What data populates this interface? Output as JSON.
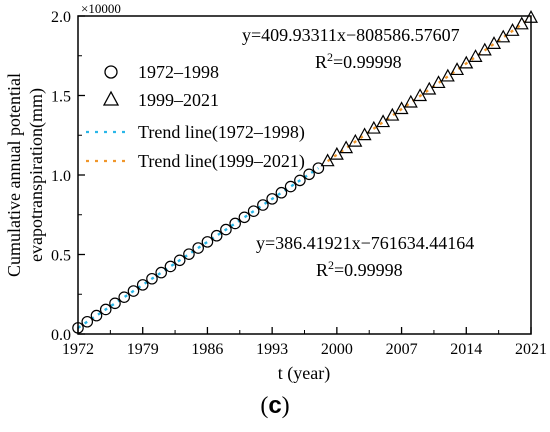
{
  "figure_label": {
    "open": "(",
    "letter": "c",
    "close": ")"
  },
  "chart_data": {
    "type": "scatter",
    "xlabel": "t (year)",
    "ylabel_line1": "Cumulative annual potential",
    "ylabel_line2": "evapotranspiration(mm)",
    "y_multiplier": "×10000",
    "xlim": [
      1972,
      2021
    ],
    "ylim": [
      0,
      2.0
    ],
    "xticks": [
      1972,
      1979,
      1986,
      1993,
      2000,
      2007,
      2014,
      2021
    ],
    "yticks": [
      0.0,
      0.5,
      1.0,
      1.5,
      2.0
    ],
    "ytick_labels": [
      "0.0",
      "0.5",
      "1.0",
      "1.5",
      "2.0"
    ],
    "grid": false,
    "legend_position": "top-left",
    "series": [
      {
        "name": "1972–1998",
        "marker": "circle",
        "x_start": 1972,
        "x_end": 1998,
        "slope": 386.41921,
        "intercept": -761634.44164,
        "scale": 10000
      },
      {
        "name": "1999–2021",
        "marker": "triangle",
        "x_start": 1999,
        "x_end": 2021,
        "slope": 409.93311,
        "intercept": -808586.57607,
        "scale": 10000
      }
    ],
    "trendlines": [
      {
        "name": "Trend line(1972–1998)",
        "color": "#29b6e8",
        "x_start": 1972,
        "x_end": 1998,
        "slope": 386.41921,
        "intercept": -761634.44164,
        "scale": 10000
      },
      {
        "name": "Trend line(1999–2021)",
        "color": "#f0962a",
        "x_start": 1999,
        "x_end": 2021,
        "slope": 409.93311,
        "intercept": -808586.57607,
        "scale": 10000
      }
    ],
    "annotations": [
      {
        "equation": "y=409.93311x−808586.57607",
        "r2_prefix": "R",
        "r2_sup": "2",
        "r2_value": "=0.99998"
      },
      {
        "equation": "y=386.41921x−761634.44164",
        "r2_prefix": "R",
        "r2_sup": "2",
        "r2_value": "=0.99998"
      }
    ]
  }
}
